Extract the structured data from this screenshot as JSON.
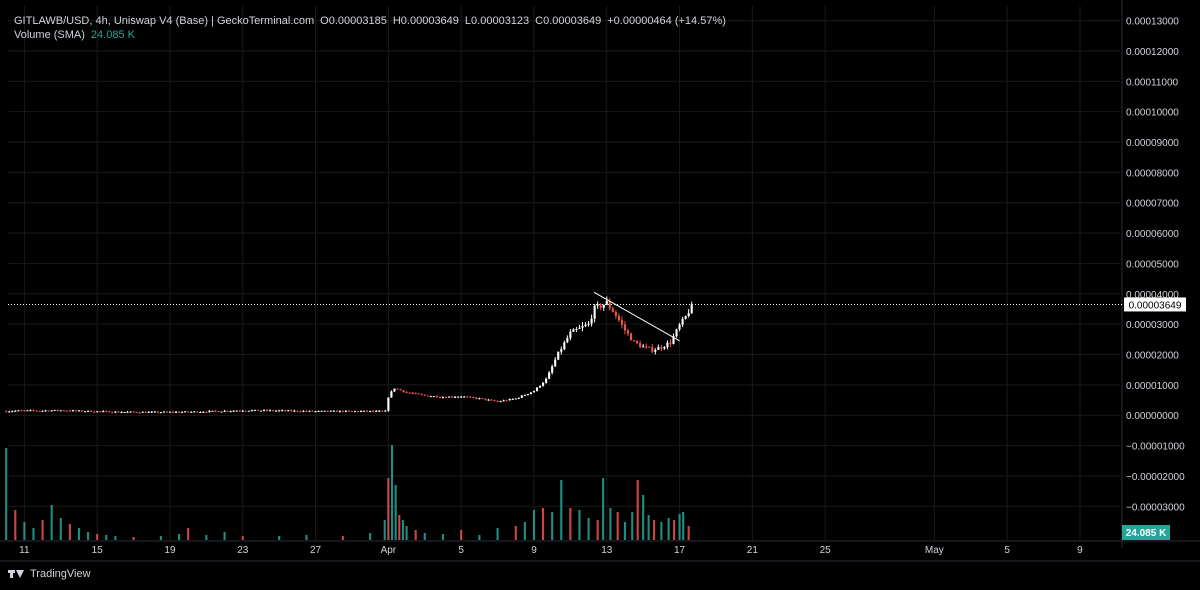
{
  "legend": {
    "symbol": "GITLAWB/USD, 4h, Uniswap V4 (Base) | GeckoTerminal.com",
    "open_label": "O",
    "open": "0.00003185",
    "high_label": "H",
    "high": "0.00003649",
    "low_label": "L",
    "low": "0.00003123",
    "close_label": "C",
    "close": "0.00003649",
    "change": "+0.00000464 (+14.57%)",
    "volume_label": "Volume (SMA)",
    "volume_value": "24.085 K"
  },
  "footer": {
    "brand": "TradingView"
  },
  "colors": {
    "up": "#26a69a",
    "down": "#ef5350",
    "candle_up": "#ffffff",
    "candle_down": "#ef5350",
    "grid": "#1a1a1a",
    "text": "#d1d4dc",
    "price_line": "#ffffff"
  },
  "chart_data": {
    "type": "candlestick",
    "y_ticks": [
      "0.00013000",
      "0.00012000",
      "0.00011000",
      "0.00010000",
      "0.00009000",
      "0.00008000",
      "0.00007000",
      "0.00006000",
      "0.00005000",
      "0.00004000",
      "0.00003000",
      "0.00002000",
      "0.00001000",
      "0.00000000",
      "−0.00001000",
      "−0.00002000",
      "−0.00003000"
    ],
    "y_tick_values": [
      0.00013,
      0.00012,
      0.00011,
      0.0001,
      9e-05,
      8e-05,
      7e-05,
      6e-05,
      5e-05,
      4e-05,
      3e-05,
      2e-05,
      1e-05,
      0,
      -1e-05,
      -2e-05,
      -3e-05
    ],
    "ylim": [
      -4.11e-05,
      0.0001348
    ],
    "x_ticks": [
      "11",
      "15",
      "19",
      "23",
      "27",
      "Apr",
      "5",
      "9",
      "13",
      "17",
      "21",
      "25",
      "May",
      "5",
      "9"
    ],
    "x_tick_days": [
      -20,
      -16,
      -12,
      -8,
      -4,
      0,
      4,
      8,
      12,
      16,
      20,
      24,
      30,
      34,
      38
    ],
    "xlim": [
      -20.9,
      40.2
    ],
    "current_price_label": "0.00003649",
    "current_price": 3.649e-05,
    "volume_label": "24.085 K",
    "trendline": {
      "start": {
        "day": 11.3,
        "price": 4.05e-05
      },
      "end": {
        "day": 16.0,
        "price": 2.45e-05
      }
    },
    "price_points": [
      [
        -21.0,
        1.3e-06
      ],
      [
        -20.3,
        1.5e-06
      ],
      [
        -19.3,
        1.5e-06
      ],
      [
        -18.0,
        1.6e-06
      ],
      [
        -17.0,
        1.4e-06
      ],
      [
        -15.0,
        1.1e-06
      ],
      [
        -13.0,
        1e-06
      ],
      [
        -11.0,
        1.1e-06
      ],
      [
        -9.5,
        1.3e-06
      ],
      [
        -8.0,
        1.6e-06
      ],
      [
        -6.0,
        1.5e-06
      ],
      [
        -4.0,
        1.3e-06
      ],
      [
        -2.0,
        1.3e-06
      ],
      [
        -0.1,
        1.3e-06
      ],
      [
        0.0,
        6e-06
      ],
      [
        0.3,
        9e-06
      ],
      [
        1.0,
        7.5e-06
      ],
      [
        2.0,
        6.5e-06
      ],
      [
        3.0,
        6e-06
      ],
      [
        4.0,
        6.2e-06
      ],
      [
        5.0,
        5.5e-06
      ],
      [
        6.0,
        4.5e-06
      ],
      [
        7.0,
        5.5e-06
      ],
      [
        8.0,
        8e-06
      ],
      [
        8.7,
        1.2e-05
      ],
      [
        9.3,
        2e-05
      ],
      [
        10.0,
        2.7e-05
      ],
      [
        11.0,
        3e-05
      ],
      [
        11.3,
        3.5e-05
      ],
      [
        12.0,
        3.7e-05
      ],
      [
        12.5,
        3.3e-05
      ],
      [
        13.0,
        2.8e-05
      ],
      [
        13.5,
        2.4e-05
      ],
      [
        14.0,
        2.25e-05
      ],
      [
        14.5,
        2.15e-05
      ],
      [
        15.0,
        2.25e-05
      ],
      [
        15.5,
        2.4e-05
      ],
      [
        16.0,
        2.95e-05
      ],
      [
        16.3,
        3.2e-05
      ],
      [
        16.7,
        3.65e-05
      ]
    ],
    "volume_points": [
      [
        -21.0,
        0.92
      ],
      [
        -20.5,
        0.3
      ],
      [
        -20.0,
        0.18
      ],
      [
        -19.5,
        0.12
      ],
      [
        -19.0,
        0.2
      ],
      [
        -18.5,
        0.35
      ],
      [
        -18.0,
        0.22
      ],
      [
        -17.5,
        0.16
      ],
      [
        -17.0,
        0.12
      ],
      [
        -16.5,
        0.08
      ],
      [
        -16.0,
        0.06
      ],
      [
        -15.5,
        0.05
      ],
      [
        -15.0,
        0.04
      ],
      [
        -14.0,
        0.03
      ],
      [
        -12.5,
        0.04
      ],
      [
        -11.5,
        0.06
      ],
      [
        -11.0,
        0.12
      ],
      [
        -10.0,
        0.05
      ],
      [
        -9.0,
        0.08
      ],
      [
        -8.0,
        0.04
      ],
      [
        -6.0,
        0.04
      ],
      [
        -4.5,
        0.05
      ],
      [
        -2.5,
        0.04
      ],
      [
        -1.0,
        0.07
      ],
      [
        -0.2,
        0.2
      ],
      [
        0.0,
        0.62
      ],
      [
        0.2,
        0.95
      ],
      [
        0.4,
        0.55
      ],
      [
        0.6,
        0.25
      ],
      [
        0.8,
        0.2
      ],
      [
        1.0,
        0.14
      ],
      [
        1.5,
        0.1
      ],
      [
        2.0,
        0.07
      ],
      [
        3.0,
        0.06
      ],
      [
        4.0,
        0.1
      ],
      [
        5.0,
        0.05
      ],
      [
        6.0,
        0.12
      ],
      [
        7.0,
        0.14
      ],
      [
        7.5,
        0.18
      ],
      [
        8.0,
        0.3
      ],
      [
        8.5,
        0.32
      ],
      [
        9.0,
        0.28
      ],
      [
        9.5,
        0.6
      ],
      [
        10.0,
        0.32
      ],
      [
        10.5,
        0.3
      ],
      [
        11.0,
        0.22
      ],
      [
        11.5,
        0.2
      ],
      [
        11.8,
        0.62
      ],
      [
        12.2,
        0.32
      ],
      [
        12.6,
        0.28
      ],
      [
        13.0,
        0.18
      ],
      [
        13.4,
        0.28
      ],
      [
        13.7,
        0.6
      ],
      [
        14.0,
        0.45
      ],
      [
        14.3,
        0.25
      ],
      [
        14.6,
        0.2
      ],
      [
        15.0,
        0.18
      ],
      [
        15.4,
        0.22
      ],
      [
        15.7,
        0.2
      ],
      [
        16.0,
        0.26
      ],
      [
        16.2,
        0.28
      ],
      [
        16.5,
        0.14
      ]
    ]
  }
}
